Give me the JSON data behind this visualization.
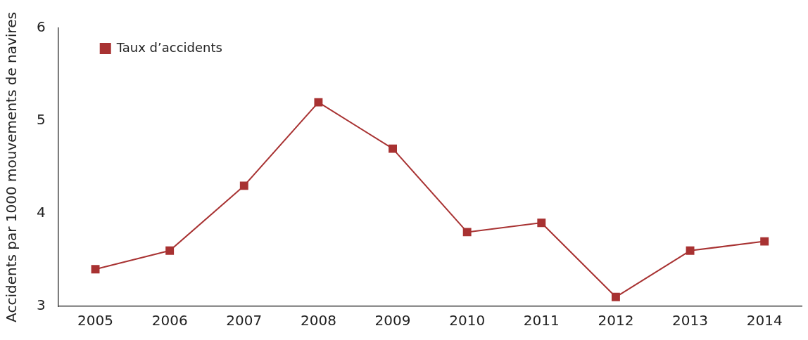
{
  "chart_data": {
    "type": "line",
    "ylabel": "Accidents par 1000 mouvements de navires",
    "categories": [
      "2005",
      "2006",
      "2007",
      "2008",
      "2009",
      "2010",
      "2011",
      "2012",
      "2013",
      "2014"
    ],
    "series": [
      {
        "name": "Taux d’accidents",
        "color": "#a83232",
        "values": [
          3.4,
          3.6,
          4.3,
          5.2,
          4.7,
          3.8,
          3.9,
          3.1,
          3.6,
          3.7
        ]
      }
    ],
    "ylim": [
      3,
      6
    ],
    "yticks": [
      3,
      4,
      5,
      6
    ],
    "grid": false,
    "legend": "top left",
    "marker": "square",
    "line_style": "solid"
  }
}
